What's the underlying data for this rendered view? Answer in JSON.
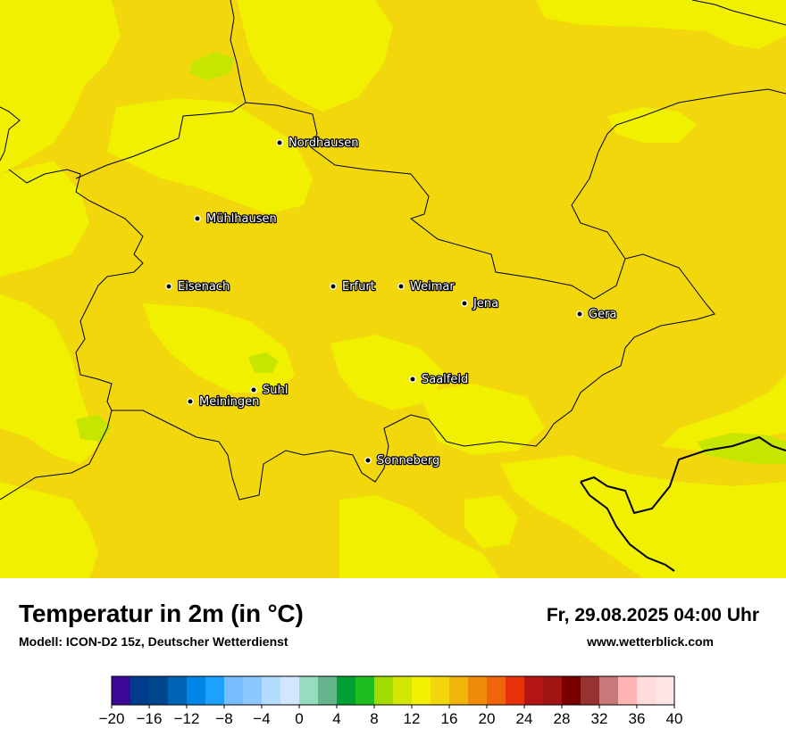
{
  "header": {
    "title": "Temperatur in 2m (in °C)",
    "model": "Modell: ICON-D2 15z, Deutscher Wetterdienst",
    "datetime": "Fr, 29.08.2025 04:00 Uhr",
    "website": "www.wetterblick.com"
  },
  "map": {
    "base_color": "#f2d70c",
    "warm_color": "#f0f000",
    "cool_color": "#c6e600",
    "cities": [
      {
        "name": "Nordhausen"
      },
      {
        "name": "Mühlhausen"
      },
      {
        "name": "Eisenach"
      },
      {
        "name": "Erfurt"
      },
      {
        "name": "Weimar"
      },
      {
        "name": "Jena"
      },
      {
        "name": "Gera"
      },
      {
        "name": "Saalfeld"
      },
      {
        "name": "Suhl"
      },
      {
        "name": "Meiningen"
      },
      {
        "name": "Sonneberg"
      }
    ]
  },
  "legend": {
    "min": -20,
    "max": 40,
    "step": 2,
    "colors": [
      "#3c0896",
      "#003c8c",
      "#00468c",
      "#0064b4",
      "#0086e6",
      "#1ea0ff",
      "#78beff",
      "#8cc8ff",
      "#b4dcff",
      "#d2e6ff",
      "#96dcbe",
      "#64b48c",
      "#00a032",
      "#1ebe1e",
      "#a0dc00",
      "#d2e600",
      "#f0f000",
      "#f2d70c",
      "#f0b40a",
      "#f08c0a",
      "#f0640a",
      "#e6320a",
      "#b41414",
      "#a01414",
      "#780000",
      "#963232",
      "#c87878",
      "#ffb4b4",
      "#ffdcdc",
      "#ffe6e6"
    ],
    "tick_labels": [
      "−20",
      "−16",
      "−12",
      "−8",
      "−4",
      "0",
      "4",
      "8",
      "12",
      "16",
      "20",
      "24",
      "28",
      "32",
      "36",
      "40"
    ]
  }
}
